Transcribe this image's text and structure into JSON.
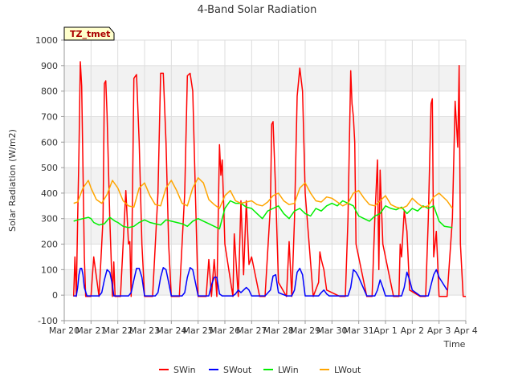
{
  "chart_data": {
    "type": "line",
    "title": "4-Band Solar Radiation",
    "xlabel": "Time",
    "ylabel": "Solar Radiation (W/m2)",
    "site_label": "TZ_tmet",
    "ylim": [
      -100,
      1000
    ],
    "yticks": [
      -100,
      0,
      100,
      200,
      300,
      400,
      500,
      600,
      700,
      800,
      900,
      1000
    ],
    "xlim": [
      0,
      15
    ],
    "xtick_values": [
      0,
      1,
      2,
      3,
      4,
      5,
      6,
      7,
      8,
      9,
      10,
      11,
      12,
      13,
      14,
      15
    ],
    "xtick_labels": [
      "Mar 20",
      "Mar 21",
      "Mar 22",
      "Mar 23",
      "Mar 24",
      "Mar 25",
      "Mar 26",
      "Mar 27",
      "Mar 28",
      "Mar 29",
      "Mar 30",
      "Mar 31",
      "Apr 1",
      "Apr 2",
      "Apr 3",
      "Apr 4"
    ],
    "grid": true,
    "legend_position": "bottom",
    "series": [
      {
        "name": "SWin",
        "color": "#ff0000",
        "x": [
          0.35,
          0.4,
          0.45,
          0.5,
          0.55,
          0.6,
          0.65,
          0.7,
          0.75,
          0.8,
          0.85,
          1.0,
          1.1,
          1.3,
          1.45,
          1.5,
          1.55,
          1.6,
          1.7,
          1.8,
          1.85,
          1.9,
          2.0,
          2.1,
          2.3,
          2.4,
          2.45,
          2.5,
          2.55,
          2.6,
          2.7,
          2.8,
          2.9,
          3.0,
          3.1,
          3.3,
          3.5,
          3.6,
          3.7,
          3.8,
          3.9,
          4.0,
          4.1,
          4.3,
          4.5,
          4.6,
          4.7,
          4.8,
          4.9,
          5.0,
          5.1,
          5.3,
          5.4,
          5.5,
          5.6,
          5.7,
          5.8,
          5.85,
          5.9,
          6.0,
          6.3,
          6.35,
          6.5,
          6.6,
          6.7,
          6.8,
          6.9,
          7.0,
          7.3,
          7.5,
          7.7,
          7.75,
          7.8,
          7.9,
          8.0,
          8.3,
          8.4,
          8.5,
          8.6,
          8.7,
          8.8,
          8.9,
          9.0,
          9.3,
          9.5,
          9.55,
          9.6,
          9.7,
          9.8,
          10.3,
          10.5,
          10.6,
          10.7,
          10.75,
          10.8,
          10.85,
          10.9,
          11.3,
          11.5,
          11.6,
          11.7,
          11.75,
          11.8,
          11.9,
          12.3,
          12.5,
          12.55,
          12.6,
          12.7,
          12.8,
          12.9,
          13.3,
          13.5,
          13.6,
          13.7,
          13.75,
          13.8,
          13.9,
          14.0,
          14.3,
          14.5,
          14.6,
          14.7,
          14.75,
          14.8,
          14.9,
          15.0
        ],
        "y": [
          -5,
          150,
          -5,
          300,
          560,
          915,
          820,
          500,
          150,
          -5,
          -5,
          -5,
          150,
          -5,
          300,
          830,
          840,
          710,
          300,
          -5,
          130,
          -5,
          -5,
          -5,
          410,
          200,
          210,
          -5,
          400,
          850,
          865,
          600,
          200,
          -5,
          -5,
          -5,
          400,
          870,
          870,
          600,
          200,
          -5,
          -5,
          -5,
          400,
          860,
          870,
          800,
          400,
          -5,
          -5,
          -5,
          140,
          -5,
          140,
          -5,
          590,
          470,
          530,
          200,
          -5,
          240,
          -5,
          370,
          80,
          370,
          120,
          150,
          -5,
          -5,
          350,
          670,
          680,
          400,
          50,
          -5,
          210,
          -5,
          300,
          780,
          890,
          800,
          400,
          -5,
          50,
          170,
          140,
          100,
          20,
          -5,
          -5,
          300,
          880,
          750,
          700,
          600,
          200,
          -5,
          -5,
          300,
          530,
          100,
          490,
          200,
          -5,
          -5,
          200,
          150,
          330,
          250,
          20,
          -5,
          -5,
          300,
          750,
          770,
          150,
          250,
          -5,
          -5,
          300,
          760,
          580,
          900,
          200,
          -5,
          -5
        ]
      },
      {
        "name": "SWout",
        "color": "#0000ff",
        "x": [
          0.35,
          0.45,
          0.5,
          0.55,
          0.6,
          0.65,
          0.7,
          0.75,
          0.85,
          1.0,
          1.1,
          1.3,
          1.4,
          1.5,
          1.6,
          1.7,
          1.8,
          1.85,
          2.0,
          2.3,
          2.4,
          2.5,
          2.6,
          2.7,
          2.8,
          2.9,
          3.0,
          3.3,
          3.4,
          3.5,
          3.6,
          3.7,
          3.8,
          3.9,
          4.0,
          4.3,
          4.4,
          4.5,
          4.6,
          4.7,
          4.8,
          4.9,
          5.0,
          5.3,
          5.4,
          5.5,
          5.6,
          5.7,
          5.8,
          5.9,
          6.0,
          6.3,
          6.4,
          6.5,
          6.6,
          6.7,
          6.8,
          6.9,
          7.0,
          7.3,
          7.5,
          7.7,
          7.8,
          7.9,
          8.0,
          8.3,
          8.4,
          8.5,
          8.6,
          8.7,
          8.8,
          8.9,
          9.0,
          9.3,
          9.5,
          9.6,
          9.7,
          9.8,
          9.9,
          10.3,
          10.5,
          10.6,
          10.7,
          10.8,
          10.9,
          11.0,
          11.3,
          11.5,
          11.6,
          11.7,
          11.8,
          11.9,
          12.0,
          12.3,
          12.5,
          12.6,
          12.7,
          12.8,
          12.9,
          13.0,
          13.3,
          13.5,
          13.6,
          13.7,
          13.8,
          13.9,
          14.0,
          14.3
        ],
        "y": [
          -3,
          -3,
          30,
          80,
          105,
          105,
          80,
          30,
          -3,
          -3,
          -3,
          -3,
          10,
          60,
          100,
          90,
          40,
          -3,
          -3,
          -3,
          -3,
          10,
          60,
          105,
          105,
          70,
          -3,
          -3,
          -3,
          10,
          70,
          108,
          100,
          50,
          -3,
          -3,
          -3,
          10,
          70,
          108,
          100,
          50,
          -3,
          -3,
          -3,
          40,
          70,
          70,
          5,
          -3,
          -3,
          -3,
          5,
          20,
          10,
          20,
          30,
          20,
          -3,
          -3,
          -3,
          20,
          75,
          80,
          10,
          -3,
          -3,
          -3,
          20,
          90,
          105,
          80,
          -3,
          -3,
          -3,
          10,
          20,
          5,
          -3,
          -3,
          -3,
          -3,
          30,
          100,
          90,
          70,
          -3,
          -3,
          -3,
          20,
          60,
          30,
          -3,
          -3,
          -3,
          -3,
          30,
          90,
          60,
          20,
          -3,
          -3,
          -3,
          40,
          80,
          100,
          70,
          20
        ]
      },
      {
        "name": "LWin",
        "color": "#00ee00",
        "x": [
          0.35,
          0.5,
          0.7,
          0.9,
          1.0,
          1.1,
          1.3,
          1.5,
          1.7,
          1.9,
          2.0,
          2.2,
          2.4,
          2.6,
          2.8,
          3.0,
          3.2,
          3.4,
          3.6,
          3.8,
          4.0,
          4.2,
          4.4,
          4.6,
          4.8,
          5.0,
          5.2,
          5.4,
          5.6,
          5.8,
          6.0,
          6.2,
          6.4,
          6.6,
          6.8,
          7.0,
          7.2,
          7.4,
          7.6,
          7.8,
          8.0,
          8.2,
          8.4,
          8.6,
          8.8,
          9.0,
          9.2,
          9.4,
          9.6,
          9.8,
          10.0,
          10.2,
          10.4,
          10.6,
          10.8,
          11.0,
          11.2,
          11.4,
          11.6,
          11.8,
          12.0,
          12.2,
          12.4,
          12.6,
          12.8,
          13.0,
          13.2,
          13.4,
          13.6,
          13.8,
          14.0,
          14.2,
          14.5
        ],
        "y": [
          290,
          295,
          300,
          305,
          300,
          285,
          275,
          280,
          305,
          290,
          285,
          270,
          265,
          270,
          285,
          295,
          285,
          280,
          275,
          295,
          290,
          285,
          280,
          270,
          290,
          300,
          290,
          280,
          270,
          260,
          340,
          370,
          360,
          360,
          345,
          340,
          320,
          300,
          330,
          340,
          350,
          320,
          300,
          330,
          340,
          320,
          310,
          340,
          330,
          350,
          360,
          350,
          370,
          360,
          350,
          310,
          300,
          290,
          310,
          320,
          350,
          340,
          335,
          345,
          320,
          340,
          330,
          350,
          340,
          350,
          290,
          270,
          265
        ]
      },
      {
        "name": "LWout",
        "color": "#ffa500",
        "x": [
          0.35,
          0.5,
          0.7,
          0.9,
          1.0,
          1.2,
          1.4,
          1.6,
          1.8,
          2.0,
          2.2,
          2.4,
          2.6,
          2.8,
          3.0,
          3.2,
          3.4,
          3.6,
          3.8,
          4.0,
          4.2,
          4.4,
          4.6,
          4.8,
          5.0,
          5.2,
          5.4,
          5.6,
          5.8,
          6.0,
          6.2,
          6.4,
          6.6,
          6.8,
          7.0,
          7.2,
          7.4,
          7.6,
          7.8,
          8.0,
          8.2,
          8.4,
          8.6,
          8.8,
          9.0,
          9.2,
          9.4,
          9.6,
          9.8,
          10.0,
          10.2,
          10.4,
          10.6,
          10.8,
          11.0,
          11.2,
          11.4,
          11.6,
          11.8,
          12.0,
          12.2,
          12.4,
          12.6,
          12.8,
          13.0,
          13.2,
          13.4,
          13.6,
          13.8,
          14.0,
          14.3,
          14.5
        ],
        "y": [
          360,
          365,
          420,
          450,
          420,
          375,
          360,
          395,
          450,
          420,
          370,
          350,
          345,
          420,
          440,
          390,
          355,
          350,
          420,
          450,
          410,
          360,
          350,
          420,
          460,
          440,
          375,
          355,
          340,
          390,
          410,
          370,
          360,
          365,
          370,
          355,
          350,
          365,
          390,
          400,
          370,
          355,
          360,
          420,
          440,
          400,
          370,
          365,
          385,
          380,
          365,
          350,
          360,
          400,
          410,
          380,
          355,
          350,
          370,
          390,
          355,
          345,
          340,
          350,
          380,
          360,
          345,
          350,
          385,
          400,
          370,
          340
        ]
      }
    ]
  }
}
